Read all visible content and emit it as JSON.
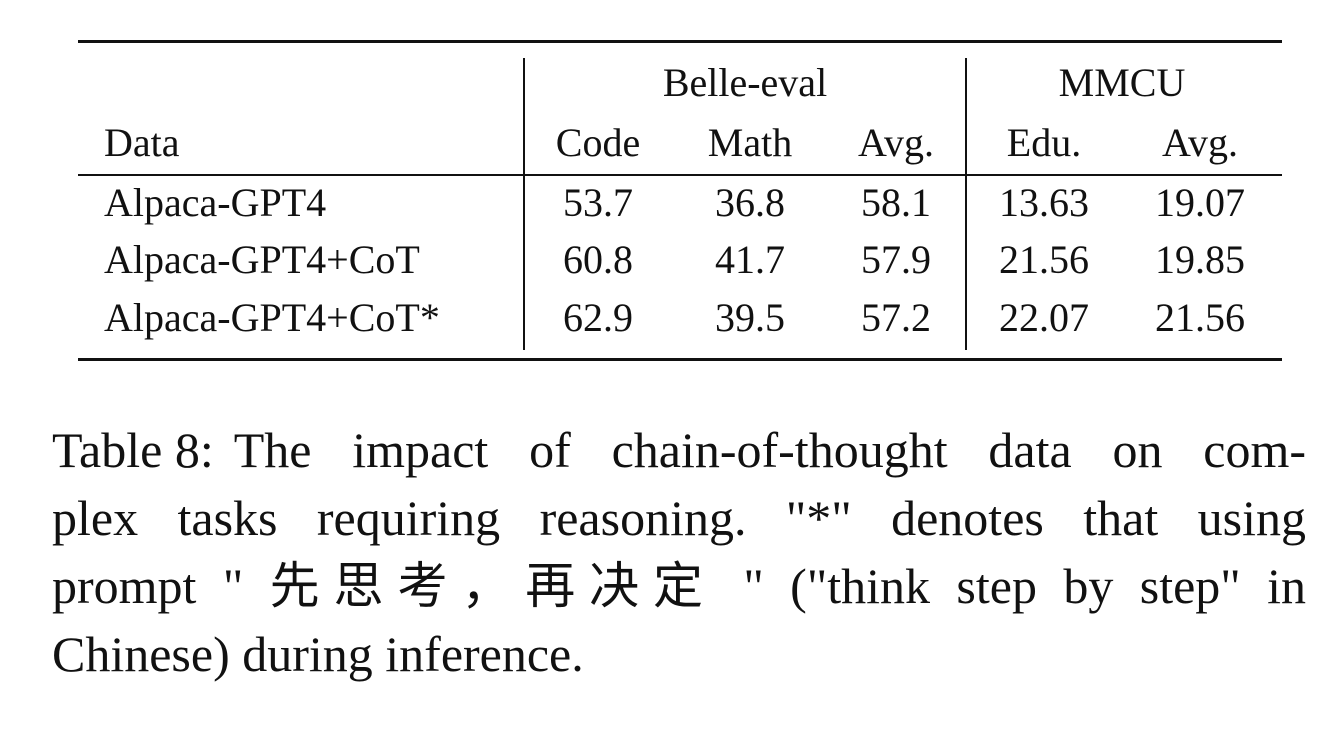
{
  "table": {
    "groups": [
      "Belle-eval",
      "MMCU"
    ],
    "columns": [
      "Data",
      "Code",
      "Math",
      "Avg.",
      "Edu.",
      "Avg."
    ],
    "rows": [
      [
        "Alpaca-GPT4",
        "53.7",
        "36.8",
        "58.1",
        "13.63",
        "19.07"
      ],
      [
        "Alpaca-GPT4+CoT",
        "60.8",
        "41.7",
        "57.9",
        "21.56",
        "19.85"
      ],
      [
        "Alpaca-GPT4+CoT*",
        "62.9",
        "39.5",
        "57.2",
        "22.07",
        "21.56"
      ]
    ]
  },
  "caption": {
    "label": "Table 8:",
    "lines": [
      "The impact of chain-of-thought data on com-",
      "plex tasks requiring reasoning. \"*\" denotes that using",
      "prompt \" 先思考，再决定 \" (\"think step by step\" in",
      "Chinese) during inference."
    ]
  }
}
